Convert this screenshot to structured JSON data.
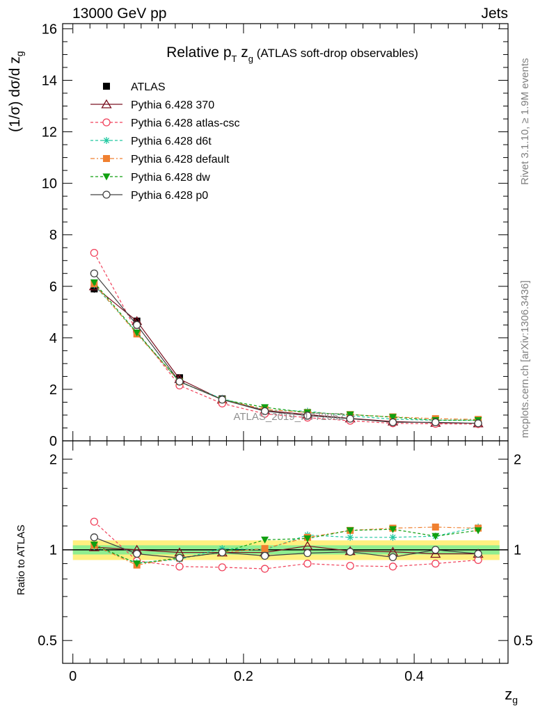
{
  "header": {
    "left": "13000 GeV pp",
    "right": "Jets"
  },
  "side_labels": {
    "rivet": "Rivet 3.1.10, ≥ 1.9M events",
    "mcplots": "mcplots.cern.ch [arXiv:1306.3436]"
  },
  "chart_data": [
    {
      "type": "line",
      "title_parts": {
        "a": "Relative p",
        "a_sub": "T",
        "b": " z",
        "b_sub": "g",
        "c": " (ATLAS soft-drop observables)"
      },
      "ylabel": "(1/σ) dσ/d z",
      "ylabel_sub": "g",
      "watermark": "ATLAS_2019_I1772062",
      "ylim": [
        0,
        16.2
      ],
      "yticks": [
        0,
        2,
        4,
        6,
        8,
        10,
        12,
        14,
        16
      ],
      "x": [
        0.025,
        0.075,
        0.125,
        0.175,
        0.225,
        0.275,
        0.325,
        0.375,
        0.425,
        0.475
      ],
      "legend_position": "top-left",
      "series": [
        {
          "name": "ATLAS",
          "color": "#000000",
          "marker": "square-filled",
          "dash": "none",
          "values": [
            5.9,
            4.65,
            2.45,
            1.63,
            1.2,
            1.0,
            0.87,
            0.76,
            0.72,
            0.7
          ],
          "errors": [
            0.15,
            0.1,
            0.06,
            0.05,
            0.05,
            0.04,
            0.04,
            0.04,
            0.04,
            0.04
          ]
        },
        {
          "name": "Pythia 6.428 370",
          "color": "#7a1020",
          "marker": "triangle-open",
          "dash": "solid",
          "values": [
            6.0,
            4.65,
            2.4,
            1.6,
            1.18,
            1.02,
            0.87,
            0.75,
            0.7,
            0.68
          ]
        },
        {
          "name": "Pythia 6.428 atlas-csc",
          "color": "#f0405a",
          "marker": "circle-open",
          "dash": "4,3",
          "values": [
            7.3,
            4.25,
            2.15,
            1.45,
            1.05,
            0.9,
            0.78,
            0.68,
            0.66,
            0.65
          ]
        },
        {
          "name": "Pythia 6.428 d6t",
          "color": "#20c8a0",
          "marker": "star",
          "dash": "4,3",
          "values": [
            6.05,
            4.2,
            2.28,
            1.64,
            1.2,
            1.15,
            0.97,
            0.84,
            0.8,
            0.8
          ]
        },
        {
          "name": "Pythia 6.428 default",
          "color": "#f08030",
          "marker": "square-filled",
          "dash": "6,3,2,3",
          "values": [
            6.1,
            4.15,
            2.3,
            1.6,
            1.22,
            1.1,
            1.02,
            0.93,
            0.86,
            0.83
          ]
        },
        {
          "name": "Pythia 6.428 dw",
          "color": "#10a010",
          "marker": "triangle-down-filled",
          "dash": "4,3",
          "values": [
            6.15,
            4.2,
            2.3,
            1.6,
            1.3,
            1.1,
            1.02,
            0.92,
            0.8,
            0.8
          ]
        },
        {
          "name": "Pythia 6.428 p0",
          "color": "#404040",
          "marker": "circle-open",
          "dash": "solid",
          "values": [
            6.5,
            4.5,
            2.3,
            1.6,
            1.15,
            0.98,
            0.86,
            0.72,
            0.72,
            0.68
          ]
        }
      ]
    },
    {
      "type": "line",
      "ylabel": "Ratio to ATLAS",
      "xlabel": "z",
      "xlabel_sub": "g",
      "ylim": [
        0.42,
        2.3
      ],
      "y_scale": "log",
      "yticks": [
        0.5,
        1,
        2
      ],
      "xlim": [
        -0.012,
        0.51
      ],
      "xticks": [
        0,
        0.2,
        0.4
      ],
      "x": [
        0.025,
        0.075,
        0.125,
        0.175,
        0.225,
        0.275,
        0.325,
        0.375,
        0.425,
        0.475
      ],
      "bands": {
        "inner": 0.035,
        "outer": 0.075,
        "inner_color": "#90ee90",
        "outer_color": "#fff080"
      },
      "series": [
        {
          "name": "Pythia 6.428 370",
          "values": [
            1.02,
            1.0,
            0.98,
            0.98,
            0.98,
            1.03,
            0.99,
            0.985,
            0.97,
            0.97
          ]
        },
        {
          "name": "Pythia 6.428 atlas-csc",
          "values": [
            1.24,
            0.92,
            0.88,
            0.875,
            0.865,
            0.9,
            0.885,
            0.88,
            0.9,
            0.925
          ]
        },
        {
          "name": "Pythia 6.428 d6t",
          "values": [
            1.025,
            0.905,
            0.93,
            1.01,
            1.0,
            1.12,
            1.1,
            1.1,
            1.11,
            1.19
          ]
        },
        {
          "name": "Pythia 6.428 default",
          "values": [
            1.035,
            0.89,
            0.94,
            0.98,
            1.01,
            1.1,
            1.16,
            1.18,
            1.19,
            1.18
          ]
        },
        {
          "name": "Pythia 6.428 dw",
          "values": [
            1.04,
            0.9,
            0.94,
            0.98,
            1.08,
            1.09,
            1.16,
            1.17,
            1.11,
            1.16
          ]
        },
        {
          "name": "Pythia 6.428 p0",
          "values": [
            1.1,
            0.97,
            0.94,
            0.98,
            0.955,
            0.975,
            0.985,
            0.945,
            1.0,
            0.97
          ]
        }
      ]
    }
  ]
}
